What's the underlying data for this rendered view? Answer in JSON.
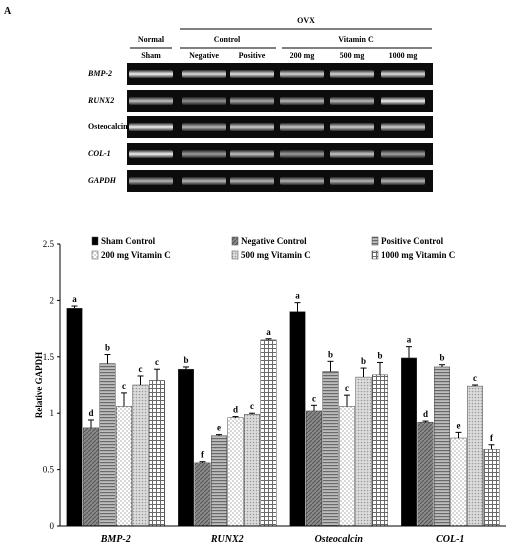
{
  "panel_label": "A",
  "gel": {
    "group_ovx": "OVX",
    "group_normal": "Normal",
    "group_control": "Control",
    "group_vitc": "Vitamin C",
    "columns": [
      "Sham",
      "Negative",
      "Positive",
      "200 mg",
      "500 mg",
      "1000 mg"
    ],
    "rows": [
      {
        "label": "BMP-2",
        "italic": true,
        "intensity": [
          0.95,
          0.85,
          0.88,
          0.82,
          0.84,
          0.86
        ]
      },
      {
        "label": "RUNX2",
        "italic": true,
        "intensity": [
          0.75,
          0.55,
          0.65,
          0.7,
          0.72,
          0.95
        ]
      },
      {
        "label": "Osteocalcin",
        "italic": false,
        "intensity": [
          0.95,
          0.7,
          0.8,
          0.78,
          0.8,
          0.8
        ]
      },
      {
        "label": "COL-1",
        "italic": true,
        "intensity": [
          0.95,
          0.6,
          0.75,
          0.6,
          0.78,
          0.62
        ]
      },
      {
        "label": "GAPDH",
        "italic": true,
        "intensity": [
          0.7,
          0.7,
          0.7,
          0.68,
          0.7,
          0.7
        ]
      }
    ]
  },
  "chart_data": {
    "type": "bar",
    "ylabel": "Relative GAPDH",
    "ylim": [
      0,
      2.5
    ],
    "yticks": [
      "0",
      "0.5",
      "1",
      "1.5",
      "2",
      "2.5"
    ],
    "categories": [
      "BMP-2",
      "RUNX2",
      "Osteocalcin",
      "COL-1"
    ],
    "grid": false,
    "legend_position": "top",
    "series": [
      {
        "name": "Sham Control",
        "pattern": "solid-black",
        "values": [
          1.93,
          1.39,
          1.9,
          1.49
        ],
        "errors": [
          0.02,
          0.02,
          0.08,
          0.1
        ],
        "labels": [
          "a",
          "b",
          "a",
          "a"
        ]
      },
      {
        "name": "Negative Control",
        "pattern": "gray-diag",
        "values": [
          0.87,
          0.56,
          1.02,
          0.92
        ],
        "errors": [
          0.07,
          0.01,
          0.05,
          0.01
        ],
        "labels": [
          "d",
          "f",
          "c",
          "d"
        ]
      },
      {
        "name": "Positive Control",
        "pattern": "gray-horiz",
        "values": [
          1.44,
          0.8,
          1.37,
          1.41
        ],
        "errors": [
          0.08,
          0.01,
          0.09,
          0.02
        ],
        "labels": [
          "b",
          "e",
          "b",
          "b"
        ]
      },
      {
        "name": "200 mg Vitamin C",
        "pattern": "dots",
        "values": [
          1.06,
          0.96,
          1.06,
          0.78
        ],
        "errors": [
          0.12,
          0.01,
          0.1,
          0.05
        ],
        "labels": [
          "c",
          "d",
          "c",
          "e"
        ]
      },
      {
        "name": "500 mg Vitamin C",
        "pattern": "fine-dots",
        "values": [
          1.25,
          0.99,
          1.32,
          1.24
        ],
        "errors": [
          0.08,
          0.01,
          0.08,
          0.01
        ],
        "labels": [
          "c",
          "c",
          "b",
          "c"
        ]
      },
      {
        "name": "1000 mg Vitamin C",
        "pattern": "grid",
        "values": [
          1.29,
          1.65,
          1.34,
          0.68
        ],
        "errors": [
          0.1,
          0.01,
          0.11,
          0.04
        ],
        "labels": [
          "c",
          "a",
          "b",
          "f"
        ]
      }
    ]
  }
}
